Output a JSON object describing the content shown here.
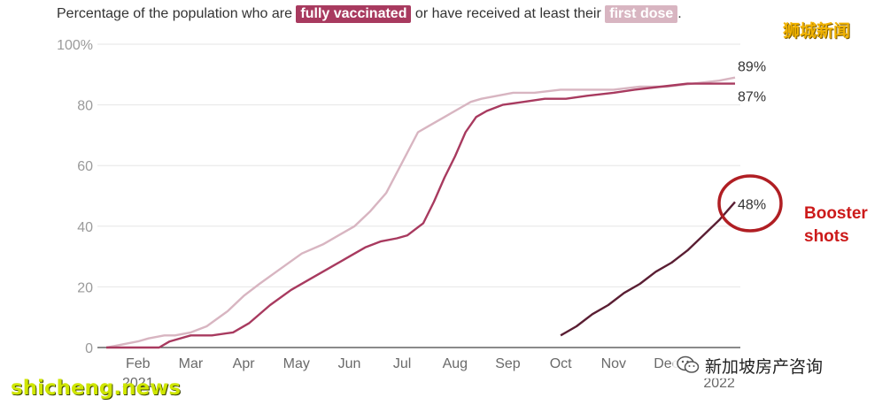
{
  "caption": {
    "prefix": "Percentage of the population who are",
    "fully_label": "fully vaccinated",
    "middle": "or have received at least their",
    "first_label": "first dose",
    "suffix": "."
  },
  "watermarks": {
    "top_right": "狮城新闻",
    "bottom_left": "shicheng.news",
    "wechat_account": "新加坡房产咨询"
  },
  "annotation": {
    "booster_label": "Booster shots",
    "booster_value": "48%",
    "circle_color": "#b01e23",
    "label_color": "#cc1a1a"
  },
  "chart_data": {
    "type": "line",
    "title": "Percentage of the population who are fully vaccinated or have received at least their first dose.",
    "xlabel": "",
    "ylabel": "",
    "x_unit": "months since 1 Jan 2021",
    "xlim": [
      0.9,
      12.9
    ],
    "ylim": [
      0,
      100
    ],
    "grid": true,
    "y_ticks": [
      {
        "value": 0,
        "label": "0"
      },
      {
        "value": 20,
        "label": "20"
      },
      {
        "value": 40,
        "label": "40"
      },
      {
        "value": 60,
        "label": "60"
      },
      {
        "value": 80,
        "label": "80"
      },
      {
        "value": 100,
        "label": "100%"
      }
    ],
    "x_ticks": [
      {
        "value": 1.5,
        "label": "Feb"
      },
      {
        "value": 2.5,
        "label": "Mar"
      },
      {
        "value": 3.5,
        "label": "Apr"
      },
      {
        "value": 4.5,
        "label": "May"
      },
      {
        "value": 5.5,
        "label": "Jun"
      },
      {
        "value": 6.5,
        "label": "Jul"
      },
      {
        "value": 7.5,
        "label": "Aug"
      },
      {
        "value": 8.5,
        "label": "Sep"
      },
      {
        "value": 9.5,
        "label": "Oct"
      },
      {
        "value": 10.5,
        "label": "Nov"
      },
      {
        "value": 11.5,
        "label": "Dec"
      }
    ],
    "year_labels": [
      {
        "value": 1.5,
        "label": "2021"
      },
      {
        "value": 12.5,
        "label": "2022"
      }
    ],
    "series": [
      {
        "name": "first dose",
        "color": "#d8b5c1",
        "end_label": "89%",
        "x": [
          0.9,
          1.2,
          1.5,
          1.7,
          2.0,
          2.2,
          2.5,
          2.8,
          3.2,
          3.5,
          3.8,
          4.2,
          4.6,
          5.0,
          5.3,
          5.6,
          5.9,
          6.2,
          6.5,
          6.8,
          7.0,
          7.3,
          7.6,
          7.8,
          8.0,
          8.3,
          8.6,
          9.0,
          9.5,
          10.0,
          10.5,
          11.0,
          11.5,
          12.0,
          12.5,
          12.8
        ],
        "y": [
          0,
          1,
          2,
          3,
          4,
          4,
          5,
          7,
          12,
          17,
          21,
          26,
          31,
          34,
          37,
          40,
          45,
          51,
          61,
          71,
          73,
          76,
          79,
          81,
          82,
          83,
          84,
          84,
          85,
          85,
          85,
          86,
          86,
          87,
          88,
          89
        ]
      },
      {
        "name": "fully vaccinated",
        "color": "#a83a5f",
        "end_label": "87%",
        "x": [
          0.9,
          1.5,
          1.9,
          2.1,
          2.5,
          2.9,
          3.3,
          3.6,
          4.0,
          4.4,
          4.8,
          5.1,
          5.5,
          5.8,
          6.1,
          6.4,
          6.6,
          6.9,
          7.1,
          7.3,
          7.5,
          7.7,
          7.9,
          8.1,
          8.4,
          8.8,
          9.2,
          9.6,
          10.0,
          10.5,
          10.9,
          11.4,
          11.9,
          12.4,
          12.8
        ],
        "y": [
          0,
          0,
          0,
          2,
          4,
          4,
          5,
          8,
          14,
          19,
          23,
          26,
          30,
          33,
          35,
          36,
          37,
          41,
          48,
          56,
          63,
          71,
          76,
          78,
          80,
          81,
          82,
          82,
          83,
          84,
          85,
          86,
          87,
          87,
          87
        ]
      },
      {
        "name": "booster shots",
        "color": "#5a1e33",
        "end_label": "48%",
        "x": [
          9.5,
          9.8,
          10.1,
          10.4,
          10.7,
          11.0,
          11.3,
          11.6,
          11.9,
          12.2,
          12.5,
          12.8
        ],
        "y": [
          4,
          7,
          11,
          14,
          18,
          21,
          25,
          28,
          32,
          37,
          42,
          48
        ]
      }
    ]
  }
}
